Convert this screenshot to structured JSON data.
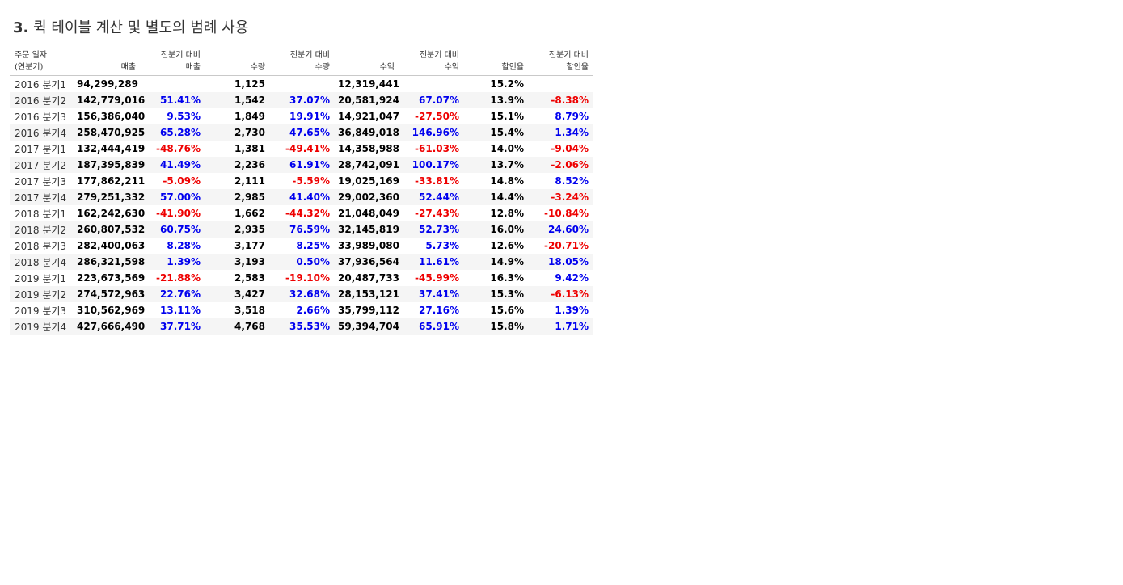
{
  "page": {
    "title_number": "3.",
    "title_text": "퀵 테이블 계산 및 별도의 범례 사용"
  },
  "colors": {
    "positive": "#0000ee",
    "negative": "#ee0000",
    "band": "#f5f5f5"
  },
  "table": {
    "headers": [
      [
        "주문 일자",
        "(연분기)"
      ],
      [
        "",
        "매출"
      ],
      [
        "전분기 대비",
        "매출"
      ],
      [
        "",
        "수량"
      ],
      [
        "전분기 대비",
        "수량"
      ],
      [
        "",
        "수익"
      ],
      [
        "전분기 대비",
        "수익"
      ],
      [
        "",
        "할인율"
      ],
      [
        "전분기 대비",
        "할인율"
      ]
    ],
    "rows": [
      [
        "2016 분기1",
        "94,299,289",
        "",
        "1,125",
        "",
        "12,319,441",
        "",
        "15.2%",
        ""
      ],
      [
        "2016 분기2",
        "142,779,016",
        "51.41%",
        "1,542",
        "37.07%",
        "20,581,924",
        "67.07%",
        "13.9%",
        "-8.38%"
      ],
      [
        "2016 분기3",
        "156,386,040",
        "9.53%",
        "1,849",
        "19.91%",
        "14,921,047",
        "-27.50%",
        "15.1%",
        "8.79%"
      ],
      [
        "2016 분기4",
        "258,470,925",
        "65.28%",
        "2,730",
        "47.65%",
        "36,849,018",
        "146.96%",
        "15.4%",
        "1.34%"
      ],
      [
        "2017 분기1",
        "132,444,419",
        "-48.76%",
        "1,381",
        "-49.41%",
        "14,358,988",
        "-61.03%",
        "14.0%",
        "-9.04%"
      ],
      [
        "2017 분기2",
        "187,395,839",
        "41.49%",
        "2,236",
        "61.91%",
        "28,742,091",
        "100.17%",
        "13.7%",
        "-2.06%"
      ],
      [
        "2017 분기3",
        "177,862,211",
        "-5.09%",
        "2,111",
        "-5.59%",
        "19,025,169",
        "-33.81%",
        "14.8%",
        "8.52%"
      ],
      [
        "2017 분기4",
        "279,251,332",
        "57.00%",
        "2,985",
        "41.40%",
        "29,002,360",
        "52.44%",
        "14.4%",
        "-3.24%"
      ],
      [
        "2018 분기1",
        "162,242,630",
        "-41.90%",
        "1,662",
        "-44.32%",
        "21,048,049",
        "-27.43%",
        "12.8%",
        "-10.84%"
      ],
      [
        "2018 분기2",
        "260,807,532",
        "60.75%",
        "2,935",
        "76.59%",
        "32,145,819",
        "52.73%",
        "16.0%",
        "24.60%"
      ],
      [
        "2018 분기3",
        "282,400,063",
        "8.28%",
        "3,177",
        "8.25%",
        "33,989,080",
        "5.73%",
        "12.6%",
        "-20.71%"
      ],
      [
        "2018 분기4",
        "286,321,598",
        "1.39%",
        "3,193",
        "0.50%",
        "37,936,564",
        "11.61%",
        "14.9%",
        "18.05%"
      ],
      [
        "2019 분기1",
        "223,673,569",
        "-21.88%",
        "2,583",
        "-19.10%",
        "20,487,733",
        "-45.99%",
        "16.3%",
        "9.42%"
      ],
      [
        "2019 분기2",
        "274,572,963",
        "22.76%",
        "3,427",
        "32.68%",
        "28,153,121",
        "37.41%",
        "15.3%",
        "-6.13%"
      ],
      [
        "2019 분기3",
        "310,562,969",
        "13.11%",
        "3,518",
        "2.66%",
        "35,799,112",
        "27.16%",
        "15.6%",
        "1.39%"
      ],
      [
        "2019 분기4",
        "427,666,490",
        "37.71%",
        "4,768",
        "35.53%",
        "59,394,704",
        "65.91%",
        "15.8%",
        "1.71%"
      ]
    ]
  }
}
